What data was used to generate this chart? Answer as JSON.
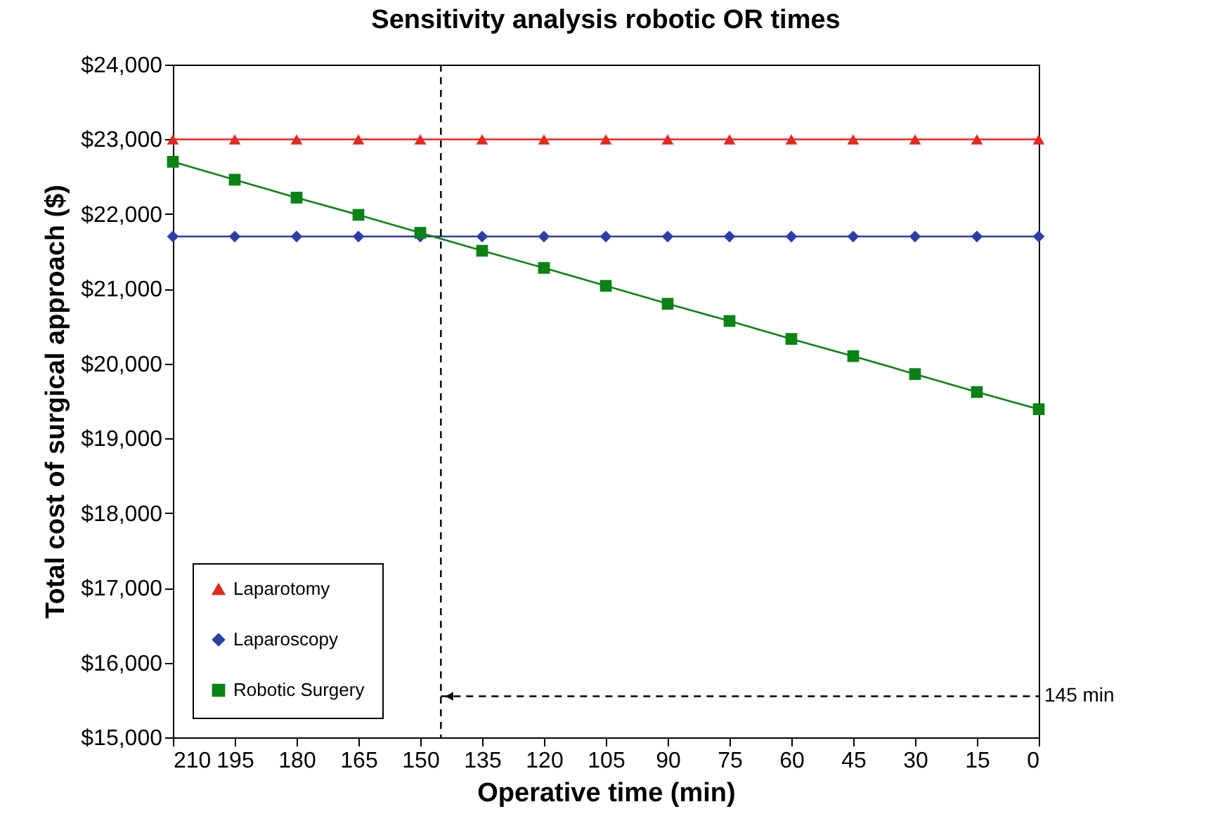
{
  "chart_data": {
    "type": "line",
    "title": "Sensitivity analysis robotic OR times",
    "xlabel": "Operative time (min)",
    "ylabel": "Total cost of surgical approach ($)",
    "x": [
      210,
      195,
      180,
      165,
      150,
      135,
      120,
      105,
      90,
      75,
      60,
      45,
      30,
      15,
      0
    ],
    "series": [
      {
        "name": "Laparotomy",
        "color": "#e3281f",
        "marker": "triangle",
        "values": [
          23000,
          23000,
          23000,
          23000,
          23000,
          23000,
          23000,
          23000,
          23000,
          23000,
          23000,
          23000,
          23000,
          23000,
          23000
        ]
      },
      {
        "name": "Laparoscopy",
        "color": "#2c3fa8",
        "marker": "diamond",
        "values": [
          21700,
          21700,
          21700,
          21700,
          21700,
          21700,
          21700,
          21700,
          21700,
          21700,
          21700,
          21700,
          21700,
          21700,
          21700
        ]
      },
      {
        "name": "Robotic Surgery",
        "color": "#0a8214",
        "marker": "square",
        "values": [
          22700,
          22460,
          22220,
          21990,
          21750,
          21510,
          21280,
          21040,
          20800,
          20570,
          20330,
          20100,
          19860,
          19620,
          19390
        ]
      }
    ],
    "xlim": [
      210,
      0
    ],
    "xticks": [
      210,
      195,
      180,
      165,
      150,
      135,
      120,
      105,
      90,
      75,
      60,
      45,
      30,
      15,
      0
    ],
    "ylim": [
      15000,
      24000
    ],
    "yticks": [
      {
        "value": 15000,
        "label": "$15,000"
      },
      {
        "value": 16000,
        "label": "$16,000"
      },
      {
        "value": 17000,
        "label": "$17,000"
      },
      {
        "value": 18000,
        "label": "$18,000"
      },
      {
        "value": 19000,
        "label": "$19,000"
      },
      {
        "value": 20000,
        "label": "$20,000"
      },
      {
        "value": 21000,
        "label": "$21,000"
      },
      {
        "value": 22000,
        "label": "$22,000"
      },
      {
        "value": 23000,
        "label": "$23,000"
      },
      {
        "value": 24000,
        "label": "$24,000"
      }
    ],
    "ref_lines": [
      {
        "axis": "x",
        "value": 145,
        "color": "#000000",
        "line_style": "dashed"
      }
    ],
    "annotations": [
      {
        "text": "145 min",
        "x": 145,
        "y": 15550
      }
    ],
    "legend": "bottom left",
    "grid": false
  }
}
